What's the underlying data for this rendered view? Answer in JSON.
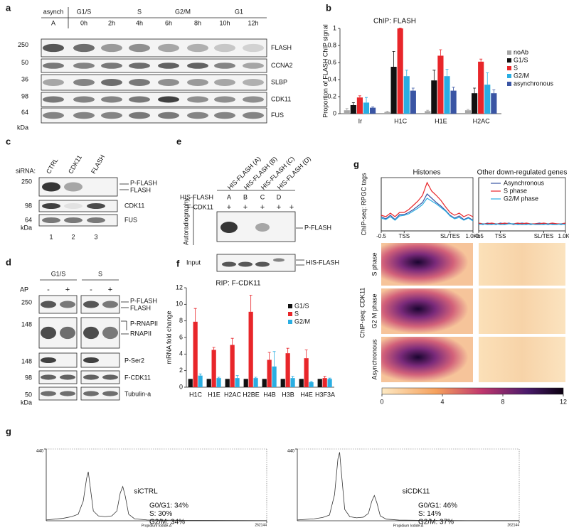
{
  "panel_labels": [
    "a",
    "b",
    "c",
    "d",
    "e",
    "f",
    "g",
    "g"
  ],
  "blot_a": {
    "phases": [
      "asynch",
      "G1/S",
      "S",
      "G2/M",
      "G1"
    ],
    "lanes": [
      "A",
      "0h",
      "2h",
      "4h",
      "6h",
      "8h",
      "10h",
      "12h"
    ],
    "markers": [
      "250",
      "50",
      "36",
      "98",
      "64"
    ],
    "unit": "kDa",
    "proteins": [
      "FLASH",
      "CCNA2",
      "SLBP",
      "CDK11",
      "FUS"
    ]
  },
  "blot_c": {
    "siRNA_label": "siRNA:",
    "lanes": [
      "CTRL",
      "CDK11",
      "FLASH"
    ],
    "markers": [
      "250",
      "98",
      "64"
    ],
    "unit": "kDa",
    "labels": [
      "P-FLASH",
      "FLASH",
      "CDK11",
      "FUS"
    ],
    "lane_numbers": [
      "1",
      "2",
      "3"
    ]
  },
  "blot_d": {
    "phases": [
      "G1/S",
      "S"
    ],
    "ap_label": "AP",
    "ap": [
      "-",
      "+",
      "-",
      "+"
    ],
    "markers": [
      "250",
      "148",
      "148",
      "98",
      "50"
    ],
    "unit": "kDa",
    "labels": [
      "P-FLASH",
      "FLASH",
      "P-RNAPII",
      "RNAPII",
      "P-Ser2",
      "F-CDK11",
      "Tubulin-a"
    ]
  },
  "blot_e": {
    "method": "Autoradiography",
    "lanes": [
      "HIS-FLASH (A)",
      "HIS-FLASH (B)",
      "HIS-FLASH (C)",
      "HIS-FLASH (D)"
    ],
    "row1_label": "HIS-FLASH",
    "row1": [
      "A",
      "B",
      "C",
      "D"
    ],
    "row2_label": "F-CDK11",
    "row2": [
      "+",
      "+",
      "+",
      "+",
      "+"
    ],
    "signal_label": "P-FLASH",
    "input": "Input",
    "input_label": "HIS-FLASH"
  },
  "heatmap_g": {
    "y_label": "ChIP-seq: CDK11",
    "row_labels": [
      "S phase",
      "G2 M phase",
      "Asynchronous"
    ],
    "colorbar_ticks": [
      0,
      4,
      8,
      12
    ]
  },
  "chart_data": [
    {
      "type": "bar",
      "title": "ChIP: FLASH",
      "y_label": "Proportion of FLASH ChIP signal",
      "categories": [
        "Ir",
        "H1C",
        "H1E",
        "H2AC"
      ],
      "ylim": [
        0,
        1
      ],
      "yticks": [
        0,
        0.2,
        0.4,
        0.6,
        0.8,
        1
      ],
      "legend": "right",
      "series": [
        {
          "name": "noAb",
          "color": "#a6a6a6",
          "values": [
            0.04,
            0.02,
            0.03,
            0.04
          ],
          "errors": [
            0.02,
            0.01,
            0.01,
            0.01
          ]
        },
        {
          "name": "G1/S",
          "color": "#111111",
          "values": [
            0.1,
            0.55,
            0.39,
            0.24
          ],
          "errors": [
            0.03,
            0.18,
            0.12,
            0.06
          ]
        },
        {
          "name": "S",
          "color": "#e8262a",
          "values": [
            0.19,
            1.0,
            0.68,
            0.61
          ],
          "errors": [
            0.02,
            0.005,
            0.07,
            0.03
          ]
        },
        {
          "name": "G2/M",
          "color": "#2aaee2",
          "values": [
            0.13,
            0.44,
            0.44,
            0.34
          ],
          "errors": [
            0.06,
            0.07,
            0.08,
            0.14
          ]
        },
        {
          "name": "asynchronous",
          "color": "#3a55a4",
          "values": [
            0.07,
            0.27,
            0.27,
            0.24
          ],
          "errors": [
            0.01,
            0.03,
            0.04,
            0.04
          ]
        }
      ]
    },
    {
      "type": "bar",
      "title": "RIP: F-CDK11",
      "y_label": "mRNA  fold change",
      "categories": [
        "H1C",
        "H1E",
        "H2AC",
        "H2BE",
        "H4B",
        "H3B",
        "H4E",
        "H3F3A"
      ],
      "ylim": [
        0,
        12
      ],
      "yticks": [
        0,
        2,
        4,
        6,
        8,
        10,
        12
      ],
      "legend": "right",
      "series": [
        {
          "name": "G1/S",
          "color": "#111111",
          "values": [
            1,
            1,
            1,
            1,
            1,
            1,
            1,
            1
          ]
        },
        {
          "name": "S",
          "color": "#e8262a",
          "values": [
            7.9,
            4.5,
            5.1,
            9.1,
            3.3,
            4.1,
            3.5,
            1.1
          ],
          "errors": [
            1.6,
            0.3,
            0.8,
            2.0,
            0.9,
            0.6,
            1.0,
            0.2
          ]
        },
        {
          "name": "G2/M",
          "color": "#2aaee2",
          "values": [
            1.4,
            1.1,
            1.1,
            1.1,
            2.5,
            1.1,
            0.6,
            1.0
          ],
          "errors": [
            0.2,
            0.1,
            0.3,
            0.1,
            1.8,
            0.2,
            0.1,
            0.1
          ]
        }
      ]
    },
    {
      "type": "line",
      "title": "Histones",
      "y_label": "ChIP-seq: RPGC  tags",
      "xlim": [
        0,
        4
      ],
      "ylim": [
        0,
        7.5
      ],
      "xticks": [
        {
          "value": 0,
          "label": "-0.5"
        },
        {
          "value": 1,
          "label": "TSS"
        },
        {
          "value": 3,
          "label": "SL/TES"
        },
        {
          "value": 4,
          "label": "1.0Kb"
        }
      ],
      "x": [
        0,
        0.2,
        0.4,
        0.6,
        0.8,
        1,
        1.2,
        1.4,
        1.6,
        1.8,
        2,
        2.2,
        2.4,
        2.6,
        2.8,
        3,
        3.2,
        3.4,
        3.6,
        3.8,
        4
      ],
      "series": [
        {
          "name": "Asynchronous",
          "color": "#3a55a4",
          "values": [
            2.0,
            1.7,
            2.2,
            1.6,
            2.3,
            2.3,
            2.6,
            3.0,
            3.5,
            4.0,
            5.2,
            4.6,
            4.0,
            3.5,
            2.9,
            2.2,
            1.8,
            2.1,
            1.6,
            1.9,
            1.5
          ]
        },
        {
          "name": "S phase",
          "color": "#e8262a",
          "values": [
            2.2,
            2.0,
            2.5,
            2.0,
            2.6,
            2.6,
            3.0,
            3.6,
            4.2,
            5.0,
            6.8,
            5.6,
            5.0,
            4.3,
            3.4,
            2.6,
            2.2,
            2.5,
            2.0,
            2.3,
            2.0
          ]
        },
        {
          "name": "G2/M phase",
          "color": "#2aaee2",
          "values": [
            1.8,
            1.6,
            2.0,
            1.5,
            2.1,
            2.2,
            2.4,
            2.8,
            3.2,
            3.7,
            4.6,
            4.2,
            3.8,
            3.3,
            2.8,
            2.1,
            1.7,
            1.9,
            1.5,
            1.8,
            1.4
          ]
        }
      ]
    },
    {
      "type": "line",
      "title": "Other down-regulated genes",
      "xlim": [
        0,
        4
      ],
      "ylim": [
        0,
        7.5
      ],
      "legend": "upper right",
      "xticks": [
        {
          "value": 0,
          "label": "-0.5"
        },
        {
          "value": 1,
          "label": "TSS"
        },
        {
          "value": 3,
          "label": "SL/TES"
        },
        {
          "value": 4,
          "label": "1.0Kb"
        }
      ],
      "x": [
        0,
        0.2,
        0.4,
        0.6,
        0.8,
        1,
        1.2,
        1.4,
        1.6,
        1.8,
        2,
        2.2,
        2.4,
        2.6,
        2.8,
        3,
        3.2,
        3.4,
        3.6,
        3.8,
        4
      ],
      "series": [
        {
          "name": "Asynchronous",
          "color": "#3a55a4",
          "values": [
            1.0,
            0.9,
            1.1,
            1.0,
            0.9,
            1.1,
            1.0,
            1.1,
            0.9,
            1.0,
            1.1,
            1.0,
            0.9,
            1.0,
            1.1,
            1.0,
            0.9,
            1.0,
            1.0,
            0.9,
            1.0
          ]
        },
        {
          "name": "S phase",
          "color": "#e8262a",
          "values": [
            1.1,
            1.0,
            1.0,
            1.1,
            1.0,
            1.0,
            1.1,
            1.0,
            1.0,
            1.1,
            1.0,
            1.1,
            1.0,
            1.0,
            1.0,
            1.1,
            1.0,
            1.1,
            1.0,
            1.0,
            1.1
          ]
        },
        {
          "name": "G2/M phase",
          "color": "#2aaee2",
          "values": [
            0.9,
            1.0,
            0.9,
            0.9,
            1.0,
            0.9,
            0.9,
            1.0,
            1.0,
            0.9,
            0.9,
            0.9,
            1.0,
            0.9,
            0.9,
            0.9,
            1.0,
            0.9,
            0.9,
            1.0,
            0.9
          ]
        }
      ]
    },
    {
      "type": "line",
      "title": "siCTRL",
      "x_label": "Propidium Iodide-A",
      "annotations": [
        "G0/G1: 34%",
        "S: 30%",
        "G2/M: 34%"
      ],
      "xlim": [
        0,
        262144
      ],
      "ylim": [
        0,
        440
      ],
      "xticks": [
        262144
      ],
      "yticks": [
        440
      ],
      "x": [
        0,
        20000,
        30000,
        38000,
        44000,
        48000,
        50000,
        52000,
        56000,
        62000,
        70000,
        78000,
        84000,
        88000,
        91000,
        94000,
        98000,
        105000,
        120000,
        150000,
        200000,
        262144
      ],
      "series": [
        {
          "color": "#333333",
          "values": [
            5,
            15,
            25,
            40,
            120,
            260,
            300,
            220,
            60,
            30,
            25,
            30,
            60,
            170,
            210,
            150,
            40,
            12,
            5,
            3,
            2,
            1
          ]
        }
      ]
    },
    {
      "type": "line",
      "title": "siCDK11",
      "x_label": "Propidium Iodide-A",
      "annotations": [
        "G0/G1: 46%",
        "S: 14%",
        "G2/M: 37%"
      ],
      "xlim": [
        0,
        262144
      ],
      "ylim": [
        0,
        440
      ],
      "xticks": [
        262144
      ],
      "yticks": [
        440
      ],
      "x": [
        0,
        20000,
        30000,
        38000,
        44000,
        48000,
        50000,
        52000,
        56000,
        62000,
        70000,
        78000,
        84000,
        88000,
        91000,
        94000,
        98000,
        105000,
        120000,
        150000,
        200000,
        262144
      ],
      "series": [
        {
          "color": "#333333",
          "values": [
            5,
            12,
            20,
            35,
            160,
            380,
            420,
            300,
            70,
            25,
            18,
            22,
            45,
            120,
            155,
            110,
            30,
            10,
            4,
            2,
            1,
            1
          ]
        }
      ]
    }
  ]
}
